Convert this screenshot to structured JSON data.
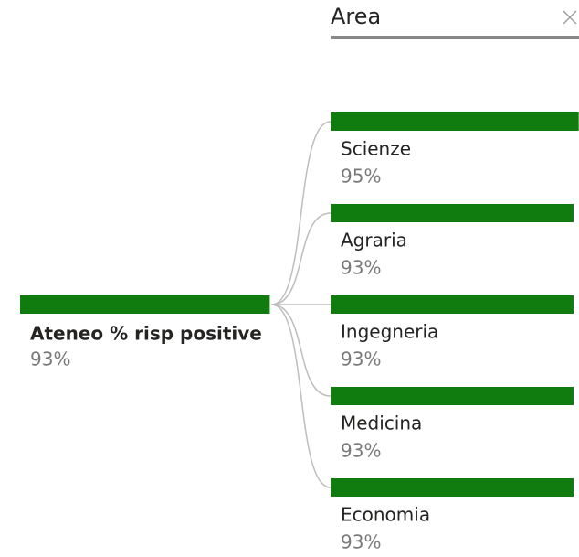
{
  "chart_data": {
    "type": "tree",
    "root": {
      "name": "Ateneo % risp positive",
      "value": 93,
      "value_label": "93%"
    },
    "level_title": "Area",
    "categories": [
      "Scienze",
      "Agraria",
      "Ingegneria",
      "Medicina",
      "Economia"
    ],
    "values": [
      95,
      93,
      93,
      93,
      93
    ],
    "value_labels": [
      "95%",
      "93%",
      "93%",
      "93%",
      "93%"
    ],
    "color": "#107c10",
    "xlim": [
      0,
      100
    ]
  }
}
